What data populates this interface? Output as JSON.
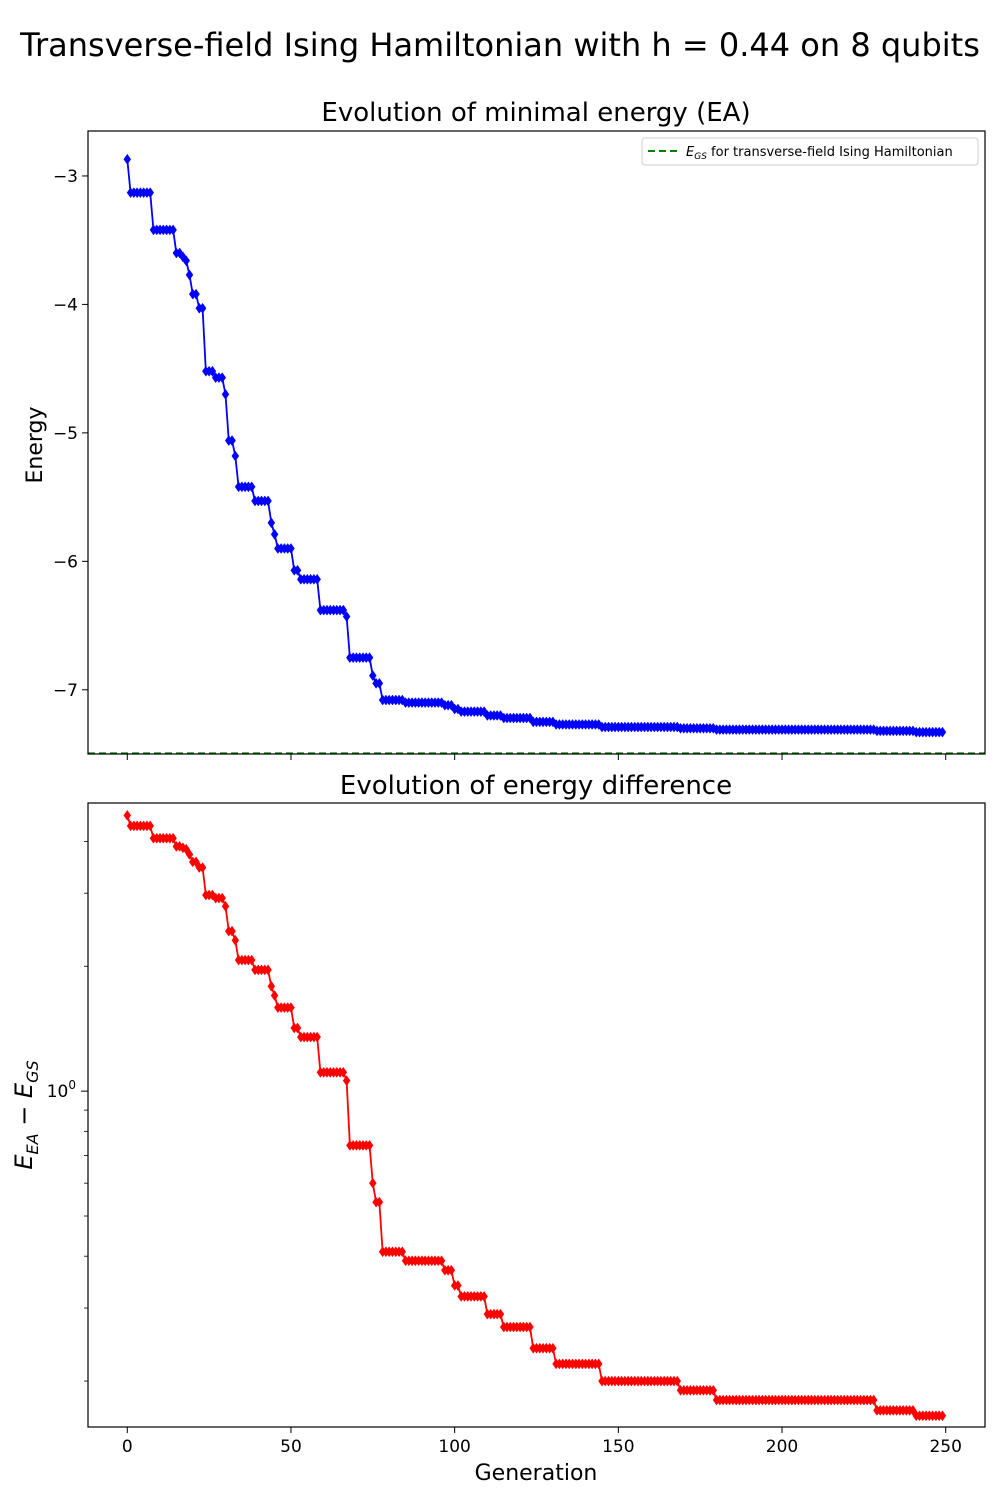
{
  "figure": {
    "suptitle": "Transverse-field Ising Hamiltonian with h = 0.44 on 8 qubits"
  },
  "colors": {
    "energy_series": "#0000ff",
    "difference_series": "#ff0000",
    "ground_state_line": "#008000",
    "axes": "#000000",
    "background": "#ffffff"
  },
  "chart_data": [
    {
      "type": "line",
      "title": "Evolution of minimal energy (EA)",
      "xlabel": "",
      "ylabel": "Energy",
      "xlim": [
        -12,
        262
      ],
      "ylim": [
        -7.5,
        -2.65
      ],
      "yscale": "linear",
      "xticks": [
        0,
        50,
        100,
        150,
        200,
        250
      ],
      "xtick_labels_shown": false,
      "yticks": [
        -3,
        -4,
        -5,
        -6,
        -7
      ],
      "ytick_labels": [
        "−3",
        "−4",
        "−5",
        "−6",
        "−7"
      ],
      "grid": false,
      "legend_position": "top-right",
      "marker": "diamond",
      "series": [
        {
          "steps": [
            [
              0,
              -2.87
            ],
            [
              1,
              -3.13
            ],
            [
              8,
              -3.42
            ],
            [
              15,
              -3.6
            ],
            [
              17,
              -3.63
            ],
            [
              18,
              -3.66
            ],
            [
              19,
              -3.77
            ],
            [
              20,
              -3.92
            ],
            [
              22,
              -4.03
            ],
            [
              24,
              -4.52
            ],
            [
              27,
              -4.57
            ],
            [
              30,
              -4.7
            ],
            [
              31,
              -5.06
            ],
            [
              33,
              -5.18
            ],
            [
              34,
              -5.42
            ],
            [
              39,
              -5.53
            ],
            [
              44,
              -5.7
            ],
            [
              45,
              -5.79
            ],
            [
              46,
              -5.9
            ],
            [
              51,
              -6.07
            ],
            [
              53,
              -6.14
            ],
            [
              59,
              -6.38
            ],
            [
              67,
              -6.43
            ],
            [
              68,
              -6.75
            ],
            [
              75,
              -6.89
            ],
            [
              76,
              -6.95
            ],
            [
              78,
              -7.08
            ],
            [
              85,
              -7.1
            ],
            [
              97,
              -7.12
            ],
            [
              100,
              -7.15
            ],
            [
              102,
              -7.17
            ],
            [
              110,
              -7.2
            ],
            [
              115,
              -7.22
            ],
            [
              124,
              -7.25
            ],
            [
              131,
              -7.27
            ],
            [
              145,
              -7.29
            ],
            [
              169,
              -7.3
            ],
            [
              180,
              -7.31
            ],
            [
              220,
              -7.31
            ],
            [
              229,
              -7.32
            ],
            [
              241,
              -7.33
            ],
            [
              249,
              -7.33
            ]
          ]
        }
      ],
      "reference_line": {
        "name": "$E_{GS}$ for transverse-field Ising Hamiltonian",
        "label_main": "E",
        "label_sub": "GS",
        "label_rest": " for transverse-field Ising Hamiltonian",
        "y": -7.495,
        "style": "dashed"
      }
    },
    {
      "type": "line",
      "title": "Evolution of energy difference",
      "xlabel": "Generation",
      "ylabel": "$E_{EA} - E_{GS}$",
      "ylabel_parts": {
        "e1": "E",
        "s1": "EA",
        "minus": " − ",
        "e2": "E",
        "s2": "GS"
      },
      "xlim": [
        -12,
        262
      ],
      "ylim": [
        0.155,
        4.95
      ],
      "yscale": "log",
      "xticks": [
        0,
        50,
        100,
        150,
        200,
        250
      ],
      "xtick_labels": [
        "0",
        "50",
        "100",
        "150",
        "200",
        "250"
      ],
      "yticks_major": [
        1
      ],
      "ytick_label_base": "10",
      "ytick_label_exp": "0",
      "yticks_minor": [
        0.2,
        0.3,
        0.4,
        0.5,
        0.6,
        0.7,
        0.8,
        0.9,
        2,
        3,
        4
      ],
      "grid": false,
      "marker": "diamond",
      "series": [
        {
          "steps": [
            [
              0,
              4.62
            ],
            [
              1,
              4.36
            ],
            [
              8,
              4.07
            ],
            [
              15,
              3.89
            ],
            [
              17,
              3.86
            ],
            [
              18,
              3.83
            ],
            [
              19,
              3.72
            ],
            [
              20,
              3.57
            ],
            [
              22,
              3.46
            ],
            [
              24,
              2.97
            ],
            [
              27,
              2.92
            ],
            [
              30,
              2.79
            ],
            [
              31,
              2.43
            ],
            [
              33,
              2.31
            ],
            [
              34,
              2.07
            ],
            [
              39,
              1.96
            ],
            [
              44,
              1.79
            ],
            [
              45,
              1.7
            ],
            [
              46,
              1.59
            ],
            [
              51,
              1.42
            ],
            [
              53,
              1.35
            ],
            [
              59,
              1.11
            ],
            [
              67,
              1.06
            ],
            [
              68,
              0.74
            ],
            [
              75,
              0.6
            ],
            [
              76,
              0.54
            ],
            [
              78,
              0.41
            ],
            [
              85,
              0.39
            ],
            [
              97,
              0.37
            ],
            [
              100,
              0.34
            ],
            [
              102,
              0.32
            ],
            [
              110,
              0.29
            ],
            [
              115,
              0.27
            ],
            [
              124,
              0.24
            ],
            [
              131,
              0.22
            ],
            [
              145,
              0.2
            ],
            [
              169,
              0.19
            ],
            [
              180,
              0.18
            ],
            [
              220,
              0.18
            ],
            [
              229,
              0.17
            ],
            [
              241,
              0.165
            ],
            [
              249,
              0.165
            ]
          ]
        }
      ]
    }
  ]
}
